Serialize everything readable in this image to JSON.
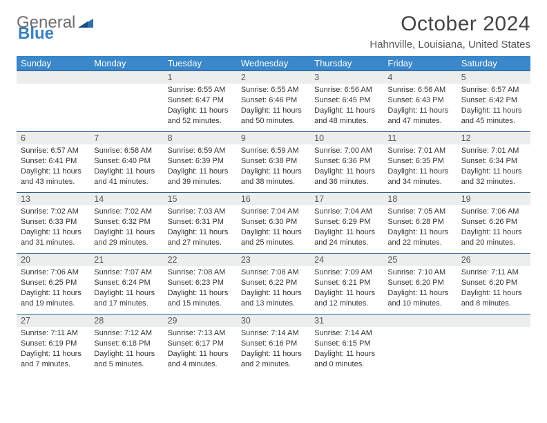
{
  "brand": {
    "part1": "General",
    "part2": "Blue"
  },
  "title": "October 2024",
  "location": "Hahnville, Louisiana, United States",
  "colors": {
    "header_bg": "#3a87c9",
    "header_text": "#ffffff",
    "daynum_bg": "#eceded",
    "daynum_border": "#2e5f8a",
    "body_text": "#333333",
    "title_text": "#444444"
  },
  "weekdays": [
    "Sunday",
    "Monday",
    "Tuesday",
    "Wednesday",
    "Thursday",
    "Friday",
    "Saturday"
  ],
  "weeks": [
    [
      null,
      null,
      {
        "n": "1",
        "sr": "Sunrise: 6:55 AM",
        "ss": "Sunset: 6:47 PM",
        "dl": "Daylight: 11 hours and 52 minutes."
      },
      {
        "n": "2",
        "sr": "Sunrise: 6:55 AM",
        "ss": "Sunset: 6:46 PM",
        "dl": "Daylight: 11 hours and 50 minutes."
      },
      {
        "n": "3",
        "sr": "Sunrise: 6:56 AM",
        "ss": "Sunset: 6:45 PM",
        "dl": "Daylight: 11 hours and 48 minutes."
      },
      {
        "n": "4",
        "sr": "Sunrise: 6:56 AM",
        "ss": "Sunset: 6:43 PM",
        "dl": "Daylight: 11 hours and 47 minutes."
      },
      {
        "n": "5",
        "sr": "Sunrise: 6:57 AM",
        "ss": "Sunset: 6:42 PM",
        "dl": "Daylight: 11 hours and 45 minutes."
      }
    ],
    [
      {
        "n": "6",
        "sr": "Sunrise: 6:57 AM",
        "ss": "Sunset: 6:41 PM",
        "dl": "Daylight: 11 hours and 43 minutes."
      },
      {
        "n": "7",
        "sr": "Sunrise: 6:58 AM",
        "ss": "Sunset: 6:40 PM",
        "dl": "Daylight: 11 hours and 41 minutes."
      },
      {
        "n": "8",
        "sr": "Sunrise: 6:59 AM",
        "ss": "Sunset: 6:39 PM",
        "dl": "Daylight: 11 hours and 39 minutes."
      },
      {
        "n": "9",
        "sr": "Sunrise: 6:59 AM",
        "ss": "Sunset: 6:38 PM",
        "dl": "Daylight: 11 hours and 38 minutes."
      },
      {
        "n": "10",
        "sr": "Sunrise: 7:00 AM",
        "ss": "Sunset: 6:36 PM",
        "dl": "Daylight: 11 hours and 36 minutes."
      },
      {
        "n": "11",
        "sr": "Sunrise: 7:01 AM",
        "ss": "Sunset: 6:35 PM",
        "dl": "Daylight: 11 hours and 34 minutes."
      },
      {
        "n": "12",
        "sr": "Sunrise: 7:01 AM",
        "ss": "Sunset: 6:34 PM",
        "dl": "Daylight: 11 hours and 32 minutes."
      }
    ],
    [
      {
        "n": "13",
        "sr": "Sunrise: 7:02 AM",
        "ss": "Sunset: 6:33 PM",
        "dl": "Daylight: 11 hours and 31 minutes."
      },
      {
        "n": "14",
        "sr": "Sunrise: 7:02 AM",
        "ss": "Sunset: 6:32 PM",
        "dl": "Daylight: 11 hours and 29 minutes."
      },
      {
        "n": "15",
        "sr": "Sunrise: 7:03 AM",
        "ss": "Sunset: 6:31 PM",
        "dl": "Daylight: 11 hours and 27 minutes."
      },
      {
        "n": "16",
        "sr": "Sunrise: 7:04 AM",
        "ss": "Sunset: 6:30 PM",
        "dl": "Daylight: 11 hours and 25 minutes."
      },
      {
        "n": "17",
        "sr": "Sunrise: 7:04 AM",
        "ss": "Sunset: 6:29 PM",
        "dl": "Daylight: 11 hours and 24 minutes."
      },
      {
        "n": "18",
        "sr": "Sunrise: 7:05 AM",
        "ss": "Sunset: 6:28 PM",
        "dl": "Daylight: 11 hours and 22 minutes."
      },
      {
        "n": "19",
        "sr": "Sunrise: 7:06 AM",
        "ss": "Sunset: 6:26 PM",
        "dl": "Daylight: 11 hours and 20 minutes."
      }
    ],
    [
      {
        "n": "20",
        "sr": "Sunrise: 7:06 AM",
        "ss": "Sunset: 6:25 PM",
        "dl": "Daylight: 11 hours and 19 minutes."
      },
      {
        "n": "21",
        "sr": "Sunrise: 7:07 AM",
        "ss": "Sunset: 6:24 PM",
        "dl": "Daylight: 11 hours and 17 minutes."
      },
      {
        "n": "22",
        "sr": "Sunrise: 7:08 AM",
        "ss": "Sunset: 6:23 PM",
        "dl": "Daylight: 11 hours and 15 minutes."
      },
      {
        "n": "23",
        "sr": "Sunrise: 7:08 AM",
        "ss": "Sunset: 6:22 PM",
        "dl": "Daylight: 11 hours and 13 minutes."
      },
      {
        "n": "24",
        "sr": "Sunrise: 7:09 AM",
        "ss": "Sunset: 6:21 PM",
        "dl": "Daylight: 11 hours and 12 minutes."
      },
      {
        "n": "25",
        "sr": "Sunrise: 7:10 AM",
        "ss": "Sunset: 6:20 PM",
        "dl": "Daylight: 11 hours and 10 minutes."
      },
      {
        "n": "26",
        "sr": "Sunrise: 7:11 AM",
        "ss": "Sunset: 6:20 PM",
        "dl": "Daylight: 11 hours and 8 minutes."
      }
    ],
    [
      {
        "n": "27",
        "sr": "Sunrise: 7:11 AM",
        "ss": "Sunset: 6:19 PM",
        "dl": "Daylight: 11 hours and 7 minutes."
      },
      {
        "n": "28",
        "sr": "Sunrise: 7:12 AM",
        "ss": "Sunset: 6:18 PM",
        "dl": "Daylight: 11 hours and 5 minutes."
      },
      {
        "n": "29",
        "sr": "Sunrise: 7:13 AM",
        "ss": "Sunset: 6:17 PM",
        "dl": "Daylight: 11 hours and 4 minutes."
      },
      {
        "n": "30",
        "sr": "Sunrise: 7:14 AM",
        "ss": "Sunset: 6:16 PM",
        "dl": "Daylight: 11 hours and 2 minutes."
      },
      {
        "n": "31",
        "sr": "Sunrise: 7:14 AM",
        "ss": "Sunset: 6:15 PM",
        "dl": "Daylight: 11 hours and 0 minutes."
      },
      null,
      null
    ]
  ]
}
